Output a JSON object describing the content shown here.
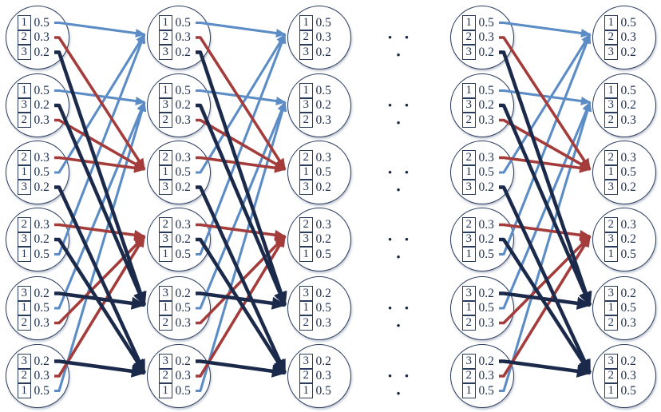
{
  "diagram": {
    "background_color": "#FFFFFF",
    "node_stroke_color": "#2A3C5E",
    "text_color": "#1F3050",
    "edge_colors": {
      "item_1": "#5B8CC5",
      "item_2": "#A33C3A",
      "item_3": "#1B2A4A"
    },
    "column_count": 5,
    "nodes_per_column": 6,
    "columns_with_edges_to_next": [
      0,
      1,
      3
    ],
    "ellipsis": {
      "glyph": "· · ·",
      "between_columns": [
        2,
        3
      ],
      "rows": 6
    },
    "states": [
      {
        "rows": [
          {
            "item": "1",
            "prob": "0.5"
          },
          {
            "item": "2",
            "prob": "0.3"
          },
          {
            "item": "3",
            "prob": "0.2"
          }
        ]
      },
      {
        "rows": [
          {
            "item": "1",
            "prob": "0.5"
          },
          {
            "item": "3",
            "prob": "0.2"
          },
          {
            "item": "2",
            "prob": "0.3"
          }
        ]
      },
      {
        "rows": [
          {
            "item": "2",
            "prob": "0.3"
          },
          {
            "item": "1",
            "prob": "0.5"
          },
          {
            "item": "3",
            "prob": "0.2"
          }
        ]
      },
      {
        "rows": [
          {
            "item": "2",
            "prob": "0.3"
          },
          {
            "item": "3",
            "prob": "0.2"
          },
          {
            "item": "1",
            "prob": "0.5"
          }
        ]
      },
      {
        "rows": [
          {
            "item": "3",
            "prob": "0.2"
          },
          {
            "item": "1",
            "prob": "0.5"
          },
          {
            "item": "2",
            "prob": "0.3"
          }
        ]
      },
      {
        "rows": [
          {
            "item": "3",
            "prob": "0.2"
          },
          {
            "item": "2",
            "prob": "0.3"
          },
          {
            "item": "1",
            "prob": "0.5"
          }
        ]
      }
    ],
    "transitions": [
      {
        "from_state": 0,
        "from_row": 0,
        "to_state": 0,
        "item": 1
      },
      {
        "from_state": 1,
        "from_row": 0,
        "to_state": 1,
        "item": 1
      },
      {
        "from_state": 2,
        "from_row": 1,
        "to_state": 0,
        "item": 1
      },
      {
        "from_state": 3,
        "from_row": 2,
        "to_state": 0,
        "item": 1
      },
      {
        "from_state": 4,
        "from_row": 1,
        "to_state": 1,
        "item": 1
      },
      {
        "from_state": 5,
        "from_row": 2,
        "to_state": 1,
        "item": 1
      },
      {
        "from_state": 0,
        "from_row": 1,
        "to_state": 2,
        "item": 2
      },
      {
        "from_state": 1,
        "from_row": 2,
        "to_state": 2,
        "item": 2
      },
      {
        "from_state": 2,
        "from_row": 0,
        "to_state": 2,
        "item": 2
      },
      {
        "from_state": 3,
        "from_row": 0,
        "to_state": 3,
        "item": 2
      },
      {
        "from_state": 4,
        "from_row": 2,
        "to_state": 3,
        "item": 2
      },
      {
        "from_state": 5,
        "from_row": 1,
        "to_state": 3,
        "item": 2
      },
      {
        "from_state": 0,
        "from_row": 2,
        "to_state": 4,
        "item": 3
      },
      {
        "from_state": 1,
        "from_row": 1,
        "to_state": 4,
        "item": 3
      },
      {
        "from_state": 2,
        "from_row": 2,
        "to_state": 5,
        "item": 3
      },
      {
        "from_state": 3,
        "from_row": 1,
        "to_state": 5,
        "item": 3
      },
      {
        "from_state": 4,
        "from_row": 0,
        "to_state": 4,
        "item": 3
      },
      {
        "from_state": 5,
        "from_row": 0,
        "to_state": 5,
        "item": 3
      }
    ]
  }
}
